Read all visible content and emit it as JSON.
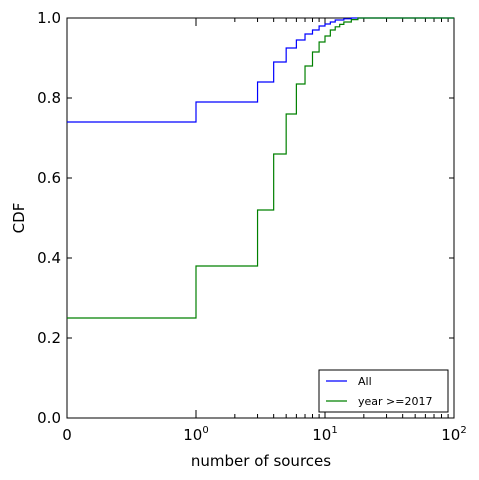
{
  "chart_data": {
    "type": "line",
    "title": "",
    "xlabel": "number of sources",
    "ylabel": "CDF",
    "xscale": "symlog",
    "xlim": [
      0,
      100
    ],
    "ylim": [
      0.0,
      1.0
    ],
    "grid": false,
    "legend_position": "lower-right",
    "x_ticks": [
      {
        "value": 0,
        "base": "0",
        "exp": ""
      },
      {
        "value": 1,
        "base": "10",
        "exp": "0"
      },
      {
        "value": 10,
        "base": "10",
        "exp": "1"
      },
      {
        "value": 100,
        "base": "10",
        "exp": "2"
      }
    ],
    "y_ticks": [
      "0.0",
      "0.2",
      "0.4",
      "0.6",
      "0.8",
      "1.0"
    ],
    "series": [
      {
        "name": "All",
        "color": "#0000ff",
        "points": [
          [
            0,
            0.74
          ],
          [
            1,
            0.79
          ],
          [
            3,
            0.84
          ],
          [
            4,
            0.89
          ],
          [
            5,
            0.925
          ],
          [
            6,
            0.945
          ],
          [
            7,
            0.96
          ],
          [
            8,
            0.97
          ],
          [
            9,
            0.98
          ],
          [
            10,
            0.985
          ],
          [
            11,
            0.99
          ],
          [
            12,
            0.995
          ],
          [
            14,
            0.998
          ],
          [
            16,
            1.0
          ],
          [
            100,
            1.0
          ]
        ]
      },
      {
        "name": "year >=2017",
        "color": "#008000",
        "points": [
          [
            0,
            0.25
          ],
          [
            1,
            0.38
          ],
          [
            3,
            0.52
          ],
          [
            4,
            0.66
          ],
          [
            5,
            0.76
          ],
          [
            6,
            0.835
          ],
          [
            7,
            0.88
          ],
          [
            8,
            0.915
          ],
          [
            9,
            0.94
          ],
          [
            10,
            0.955
          ],
          [
            11,
            0.97
          ],
          [
            12,
            0.978
          ],
          [
            13,
            0.984
          ],
          [
            14,
            0.99
          ],
          [
            16,
            0.996
          ],
          [
            18,
            1.0
          ],
          [
            100,
            1.0
          ]
        ]
      }
    ]
  }
}
